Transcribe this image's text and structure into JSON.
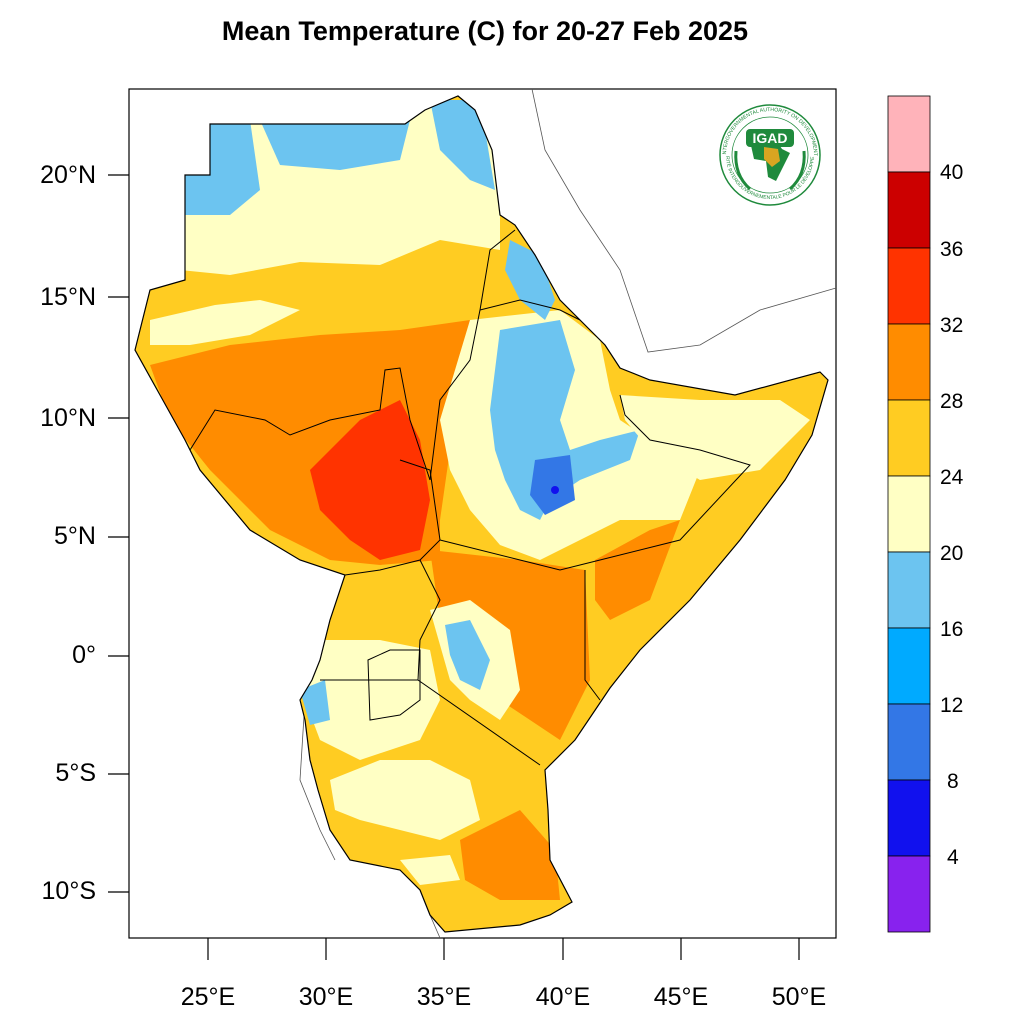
{
  "title": "Mean Temperature (C) for 20-27 Feb 2025",
  "map": {
    "lat_labels": [
      "20°N",
      "15°N",
      "10°N",
      "5°N",
      "0°",
      "5°S",
      "10°S"
    ],
    "lon_labels": [
      "25°E",
      "30°E",
      "35°E",
      "40°E",
      "45°E",
      "50°E"
    ],
    "colorbar": {
      "labels": [
        "40",
        "36",
        "32",
        "28",
        "24",
        "20",
        "16",
        "12",
        "8",
        "4"
      ],
      "colors": [
        "#ffb3ba",
        "#cc0000",
        "#ff3300",
        "#ff8c00",
        "#ffcc22",
        "#ffffc4",
        "#6cc4f0",
        "#00aaff",
        "#3377e6",
        "#1111ee",
        "#8822ee"
      ]
    },
    "logo": {
      "text": "IGAD",
      "ring_text_top": "INTERGOVERNMENTAL AUTHORITY ON DEVELOPMENT",
      "ring_text_bottom": "AUTORITÉ INTERGOUVERNEMENTALE POUR LE DÉVELOPPEMENT",
      "colors": {
        "green": "#1f8a3c",
        "gold": "#d9a521"
      }
    }
  }
}
